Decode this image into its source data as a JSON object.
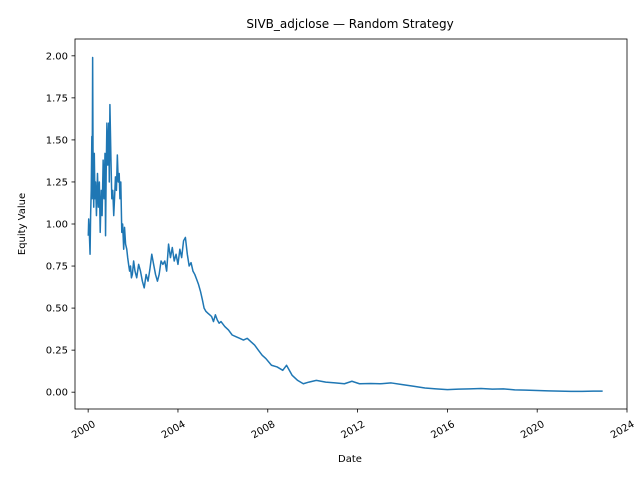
{
  "chart_data": {
    "type": "line",
    "title": "SIVB_adjclose — Random Strategy",
    "xlabel": "Date",
    "ylabel": "Equity Value",
    "xlim": [
      "1999-06-01",
      "2024-01-01"
    ],
    "ylim": [
      -0.1,
      2.1
    ],
    "x_ticks": [
      "2000",
      "2004",
      "2008",
      "2012",
      "2016",
      "2020",
      "2024"
    ],
    "y_ticks": [
      "0.00",
      "0.25",
      "0.50",
      "0.75",
      "1.00",
      "1.25",
      "1.50",
      "1.75",
      "2.00"
    ],
    "grid": false,
    "legend": "none",
    "series": [
      {
        "color": "#1f77b4",
        "points": [
          [
            "2000-01-03",
            0.93
          ],
          [
            "2000-01-10",
            1.03
          ],
          [
            "2000-01-20",
            0.95
          ],
          [
            "2000-02-01",
            0.82
          ],
          [
            "2000-02-10",
            1.05
          ],
          [
            "2000-02-20",
            1.2
          ],
          [
            "2000-03-01",
            1.52
          ],
          [
            "2000-03-05",
            1.15
          ],
          [
            "2000-03-10",
            1.6
          ],
          [
            "2000-03-14",
            1.99
          ],
          [
            "2000-03-20",
            1.45
          ],
          [
            "2000-04-01",
            1.1
          ],
          [
            "2000-04-10",
            1.42
          ],
          [
            "2000-04-20",
            1.15
          ],
          [
            "2000-05-01",
            1.25
          ],
          [
            "2000-05-15",
            1.05
          ],
          [
            "2000-06-01",
            1.3
          ],
          [
            "2000-06-15",
            1.1
          ],
          [
            "2000-07-01",
            1.25
          ],
          [
            "2000-07-15",
            0.95
          ],
          [
            "2000-08-01",
            1.2
          ],
          [
            "2000-08-15",
            1.05
          ],
          [
            "2000-09-01",
            1.38
          ],
          [
            "2000-09-15",
            1.15
          ],
          [
            "2000-10-01",
            1.42
          ],
          [
            "2000-10-10",
            0.93
          ],
          [
            "2000-10-20",
            1.3
          ],
          [
            "2000-11-01",
            1.6
          ],
          [
            "2000-11-15",
            1.35
          ],
          [
            "2000-12-01",
            1.6
          ],
          [
            "2000-12-10",
            1.25
          ],
          [
            "2000-12-20",
            1.71
          ],
          [
            "2001-01-05",
            1.4
          ],
          [
            "2001-01-20",
            1.15
          ],
          [
            "2001-02-05",
            1.2
          ],
          [
            "2001-02-20",
            1.05
          ],
          [
            "2001-03-05",
            1.15
          ],
          [
            "2001-03-20",
            1.28
          ],
          [
            "2001-04-05",
            1.2
          ],
          [
            "2001-04-20",
            1.41
          ],
          [
            "2001-05-05",
            1.25
          ],
          [
            "2001-05-20",
            1.3
          ],
          [
            "2001-06-01",
            1.15
          ],
          [
            "2001-06-15",
            1.25
          ],
          [
            "2001-07-01",
            0.95
          ],
          [
            "2001-07-15",
            1.0
          ],
          [
            "2001-08-01",
            0.85
          ],
          [
            "2001-08-15",
            0.98
          ],
          [
            "2001-09-01",
            0.88
          ],
          [
            "2001-09-20",
            0.85
          ],
          [
            "2001-10-05",
            0.8
          ],
          [
            "2001-10-20",
            0.76
          ],
          [
            "2001-11-05",
            0.72
          ],
          [
            "2001-11-20",
            0.75
          ],
          [
            "2001-12-05",
            0.68
          ],
          [
            "2001-12-20",
            0.7
          ],
          [
            "2002-01-10",
            0.78
          ],
          [
            "2002-02-01",
            0.72
          ],
          [
            "2002-03-01",
            0.68
          ],
          [
            "2002-04-01",
            0.76
          ],
          [
            "2002-05-01",
            0.72
          ],
          [
            "2002-06-01",
            0.66
          ],
          [
            "2002-07-01",
            0.62
          ],
          [
            "2002-08-01",
            0.7
          ],
          [
            "2002-09-01",
            0.66
          ],
          [
            "2002-10-01",
            0.73
          ],
          [
            "2002-11-01",
            0.82
          ],
          [
            "2002-12-01",
            0.76
          ],
          [
            "2003-01-01",
            0.7
          ],
          [
            "2003-02-01",
            0.66
          ],
          [
            "2003-03-01",
            0.7
          ],
          [
            "2003-04-01",
            0.78
          ],
          [
            "2003-05-01",
            0.76
          ],
          [
            "2003-06-01",
            0.78
          ],
          [
            "2003-07-01",
            0.72
          ],
          [
            "2003-08-01",
            0.88
          ],
          [
            "2003-09-01",
            0.8
          ],
          [
            "2003-10-01",
            0.86
          ],
          [
            "2003-11-01",
            0.78
          ],
          [
            "2003-12-01",
            0.82
          ],
          [
            "2004-01-01",
            0.76
          ],
          [
            "2004-02-01",
            0.85
          ],
          [
            "2004-03-01",
            0.8
          ],
          [
            "2004-04-01",
            0.9
          ],
          [
            "2004-05-01",
            0.92
          ],
          [
            "2004-06-01",
            0.82
          ],
          [
            "2004-07-01",
            0.75
          ],
          [
            "2004-08-01",
            0.77
          ],
          [
            "2004-09-01",
            0.72
          ],
          [
            "2004-10-01",
            0.7
          ],
          [
            "2004-11-01",
            0.67
          ],
          [
            "2004-12-01",
            0.64
          ],
          [
            "2005-01-01",
            0.6
          ],
          [
            "2005-02-01",
            0.55
          ],
          [
            "2005-03-01",
            0.5
          ],
          [
            "2005-04-01",
            0.48
          ],
          [
            "2005-05-01",
            0.47
          ],
          [
            "2005-06-01",
            0.46
          ],
          [
            "2005-07-01",
            0.45
          ],
          [
            "2005-08-01",
            0.42
          ],
          [
            "2005-09-01",
            0.46
          ],
          [
            "2005-10-01",
            0.43
          ],
          [
            "2005-11-01",
            0.41
          ],
          [
            "2005-12-01",
            0.42
          ],
          [
            "2006-02-01",
            0.39
          ],
          [
            "2006-04-01",
            0.37
          ],
          [
            "2006-06-01",
            0.34
          ],
          [
            "2006-08-01",
            0.33
          ],
          [
            "2006-10-01",
            0.32
          ],
          [
            "2006-12-01",
            0.31
          ],
          [
            "2007-02-01",
            0.32
          ],
          [
            "2007-04-01",
            0.3
          ],
          [
            "2007-06-01",
            0.28
          ],
          [
            "2007-08-01",
            0.25
          ],
          [
            "2007-10-01",
            0.22
          ],
          [
            "2007-12-01",
            0.2
          ],
          [
            "2008-03-01",
            0.16
          ],
          [
            "2008-06-01",
            0.15
          ],
          [
            "2008-09-01",
            0.13
          ],
          [
            "2008-11-01",
            0.16
          ],
          [
            "2009-02-01",
            0.1
          ],
          [
            "2009-05-01",
            0.07
          ],
          [
            "2009-08-01",
            0.05
          ],
          [
            "2009-11-01",
            0.06
          ],
          [
            "2010-03-01",
            0.07
          ],
          [
            "2010-08-01",
            0.06
          ],
          [
            "2011-01-01",
            0.055
          ],
          [
            "2011-06-01",
            0.05
          ],
          [
            "2011-10-01",
            0.065
          ],
          [
            "2012-02-01",
            0.05
          ],
          [
            "2012-08-01",
            0.052
          ],
          [
            "2013-01-01",
            0.05
          ],
          [
            "2013-07-01",
            0.055
          ],
          [
            "2014-01-01",
            0.045
          ],
          [
            "2014-07-01",
            0.035
          ],
          [
            "2015-01-01",
            0.025
          ],
          [
            "2015-07-01",
            0.02
          ],
          [
            "2016-01-01",
            0.015
          ],
          [
            "2016-07-01",
            0.018
          ],
          [
            "2017-01-01",
            0.02
          ],
          [
            "2017-07-01",
            0.022
          ],
          [
            "2018-01-01",
            0.018
          ],
          [
            "2018-07-01",
            0.02
          ],
          [
            "2019-01-01",
            0.014
          ],
          [
            "2019-07-01",
            0.012
          ],
          [
            "2020-01-01",
            0.01
          ],
          [
            "2020-07-01",
            0.008
          ],
          [
            "2021-01-01",
            0.006
          ],
          [
            "2021-07-01",
            0.005
          ],
          [
            "2022-01-01",
            0.005
          ],
          [
            "2022-07-01",
            0.006
          ],
          [
            "2022-12-01",
            0.006
          ]
        ]
      }
    ]
  }
}
